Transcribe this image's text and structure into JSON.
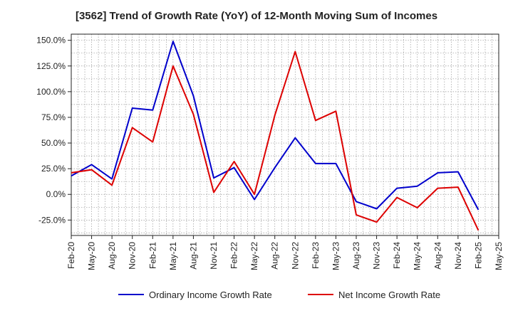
{
  "chart_data": {
    "type": "line",
    "title": "[3562]  Trend of Growth Rate (YoY) of 12-Month Moving Sum of Incomes",
    "xlabel": "",
    "ylabel": "",
    "x": [
      "Feb-20",
      "May-20",
      "Aug-20",
      "Nov-20",
      "Feb-21",
      "May-21",
      "Aug-21",
      "Nov-21",
      "Feb-22",
      "May-22",
      "Aug-22",
      "Nov-22",
      "Feb-23",
      "May-23",
      "Aug-23",
      "Nov-23",
      "Feb-24",
      "May-24",
      "Aug-24",
      "Nov-24",
      "Feb-25"
    ],
    "x_tick_labels": [
      "Feb-20",
      "May-20",
      "Aug-20",
      "Nov-20",
      "Feb-21",
      "May-21",
      "Aug-21",
      "Nov-21",
      "Feb-22",
      "May-22",
      "Aug-22",
      "Nov-22",
      "Feb-23",
      "May-23",
      "Aug-23",
      "Nov-23",
      "Feb-24",
      "May-24",
      "Aug-24",
      "Nov-24",
      "Feb-25",
      "May-25"
    ],
    "y_ticks": [
      150,
      125,
      100,
      75,
      50,
      25,
      0,
      -25
    ],
    "y_tick_labels": [
      "150.0%",
      "125.0%",
      "100.0%",
      "75.0%",
      "50.0%",
      "25.0%",
      "0.0%",
      "-25.0%"
    ],
    "ylim": [
      -40,
      156
    ],
    "grid": true,
    "legend_position": "bottom",
    "series": [
      {
        "name": "Ordinary Income Growth Rate",
        "color": "#0000cc",
        "values": [
          18,
          29,
          15,
          84,
          82,
          149,
          96,
          16,
          26,
          -5,
          26,
          55,
          30,
          30,
          -7,
          -14,
          6,
          8,
          21,
          22,
          -15
        ]
      },
      {
        "name": "Net Income Growth Rate",
        "color": "#dd0000",
        "values": [
          21,
          24,
          9,
          65,
          51,
          125,
          78,
          2,
          32,
          0,
          77,
          139,
          72,
          81,
          -20,
          -27,
          -3,
          -13,
          6,
          7,
          -35
        ]
      }
    ]
  }
}
